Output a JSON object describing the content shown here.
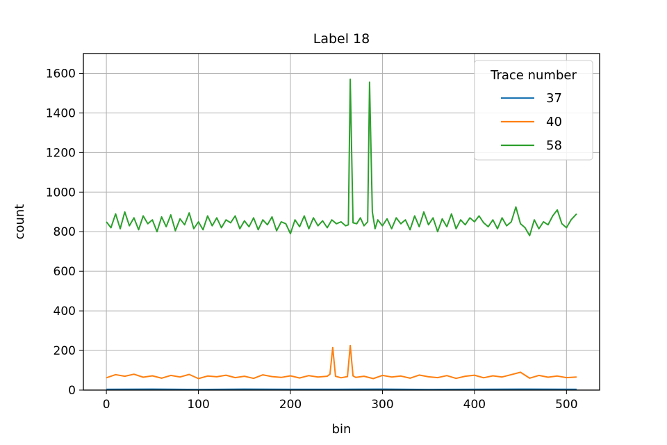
{
  "chart_data": {
    "type": "line",
    "title": "Label 18",
    "xlabel": "bin",
    "ylabel": "count",
    "xlim": [
      -25,
      536
    ],
    "ylim": [
      0,
      1700
    ],
    "xticks": [
      0,
      100,
      200,
      300,
      400,
      500
    ],
    "yticks": [
      0,
      200,
      400,
      600,
      800,
      1000,
      1200,
      1400,
      1600
    ],
    "grid": true,
    "legend": {
      "title": "Trace number",
      "placement": "top-right"
    },
    "series": [
      {
        "name": "37",
        "color": "#1f77b4",
        "x": [
          0,
          50,
          100,
          150,
          200,
          250,
          300,
          350,
          400,
          450,
          511
        ],
        "values": [
          4,
          5,
          3,
          5,
          4,
          4,
          5,
          3,
          4,
          5,
          4
        ]
      },
      {
        "name": "40",
        "color": "#ff7f0e",
        "x": [
          0,
          10,
          20,
          30,
          40,
          50,
          60,
          70,
          80,
          90,
          100,
          110,
          120,
          130,
          140,
          150,
          160,
          170,
          180,
          190,
          200,
          210,
          220,
          230,
          240,
          243,
          246,
          249,
          255,
          262,
          265,
          268,
          271,
          280,
          290,
          300,
          310,
          320,
          330,
          340,
          350,
          360,
          370,
          380,
          390,
          400,
          410,
          420,
          430,
          440,
          450,
          460,
          470,
          480,
          490,
          500,
          511
        ],
        "values": [
          62,
          78,
          70,
          80,
          65,
          72,
          60,
          74,
          66,
          79,
          58,
          71,
          67,
          75,
          63,
          70,
          59,
          77,
          68,
          64,
          72,
          61,
          73,
          66,
          70,
          80,
          215,
          70,
          62,
          68,
          225,
          72,
          64,
          70,
          58,
          74,
          66,
          71,
          60,
          76,
          67,
          63,
          73,
          59,
          70,
          75,
          62,
          72,
          66,
          78,
          90,
          60,
          74,
          65,
          71,
          63,
          66
        ]
      },
      {
        "name": "58",
        "color": "#2ca02c",
        "x": [
          0,
          5,
          10,
          15,
          20,
          25,
          30,
          35,
          40,
          45,
          50,
          55,
          60,
          65,
          70,
          75,
          80,
          85,
          90,
          95,
          100,
          105,
          110,
          115,
          120,
          125,
          130,
          135,
          140,
          145,
          150,
          155,
          160,
          165,
          170,
          175,
          180,
          185,
          190,
          195,
          200,
          205,
          210,
          215,
          220,
          225,
          230,
          235,
          240,
          245,
          250,
          255,
          260,
          263,
          265,
          268,
          272,
          276,
          280,
          284,
          286,
          289,
          292,
          295,
          300,
          305,
          310,
          315,
          320,
          325,
          330,
          335,
          340,
          345,
          350,
          355,
          360,
          365,
          370,
          375,
          380,
          385,
          390,
          395,
          400,
          405,
          410,
          415,
          420,
          425,
          430,
          435,
          440,
          445,
          450,
          455,
          460,
          465,
          470,
          475,
          480,
          485,
          490,
          495,
          500,
          505,
          511
        ],
        "values": [
          850,
          820,
          890,
          815,
          900,
          830,
          870,
          810,
          880,
          840,
          860,
          800,
          875,
          825,
          885,
          805,
          865,
          835,
          895,
          815,
          850,
          810,
          880,
          830,
          870,
          820,
          860,
          845,
          880,
          815,
          855,
          825,
          870,
          810,
          860,
          835,
          875,
          805,
          850,
          840,
          790,
          860,
          825,
          880,
          815,
          870,
          830,
          855,
          820,
          860,
          840,
          850,
          830,
          835,
          1570,
          845,
          840,
          870,
          830,
          850,
          1555,
          900,
          815,
          860,
          830,
          865,
          815,
          870,
          840,
          860,
          810,
          880,
          825,
          900,
          835,
          870,
          800,
          865,
          825,
          890,
          815,
          860,
          835,
          870,
          850,
          880,
          845,
          825,
          860,
          815,
          870,
          830,
          850,
          925,
          840,
          820,
          780,
          860,
          815,
          850,
          835,
          880,
          910,
          840,
          820,
          860,
          890
        ]
      }
    ]
  }
}
